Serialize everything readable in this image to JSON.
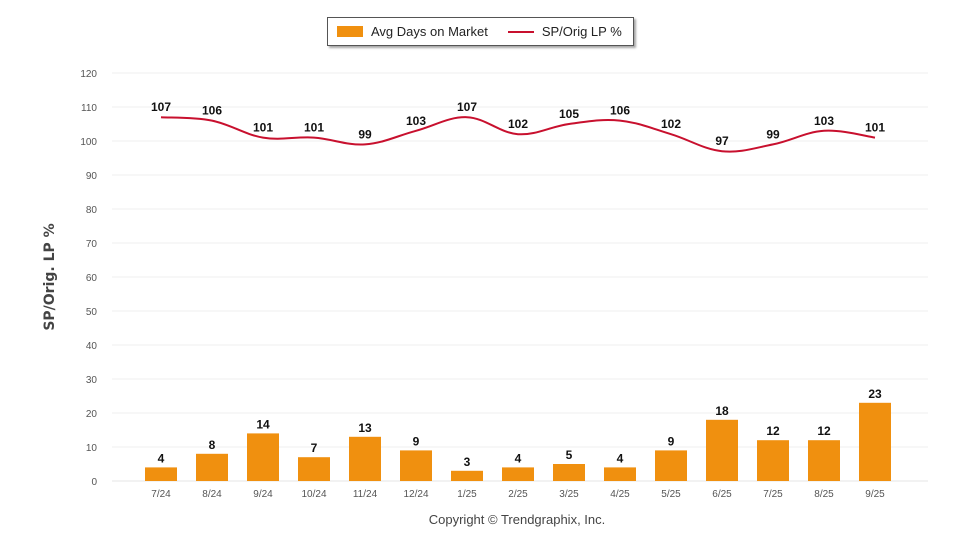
{
  "chart_data": {
    "type": "bar+line",
    "categories": [
      "7/24",
      "8/24",
      "9/24",
      "10/24",
      "11/24",
      "12/24",
      "1/25",
      "2/25",
      "3/25",
      "4/25",
      "5/25",
      "6/25",
      "7/25",
      "8/25",
      "9/25"
    ],
    "series": [
      {
        "name": "Avg Days on Market",
        "kind": "bar",
        "color": "#f0900f",
        "values": [
          4,
          8,
          14,
          7,
          13,
          9,
          3,
          4,
          5,
          4,
          9,
          18,
          12,
          12,
          23
        ]
      },
      {
        "name": "SP/Orig LP %",
        "kind": "line",
        "color": "#c8102e",
        "values": [
          107,
          106,
          101,
          101,
          99,
          103,
          107,
          102,
          105,
          106,
          102,
          97,
          99,
          103,
          101
        ]
      }
    ],
    "title": "",
    "xlabel": "",
    "ylabel": "SP/Orig. LP %",
    "ylim": [
      0,
      120
    ],
    "yticks": [
      0,
      10,
      20,
      30,
      40,
      50,
      60,
      70,
      80,
      90,
      100,
      110,
      120
    ],
    "grid": true,
    "legend_position": "top-center",
    "data_labels": true
  },
  "legend": {
    "bar_label": "Avg Days on Market",
    "line_label": "SP/Orig LP %"
  },
  "footer": {
    "copyright": "Copyright © Trendgraphix, Inc."
  }
}
